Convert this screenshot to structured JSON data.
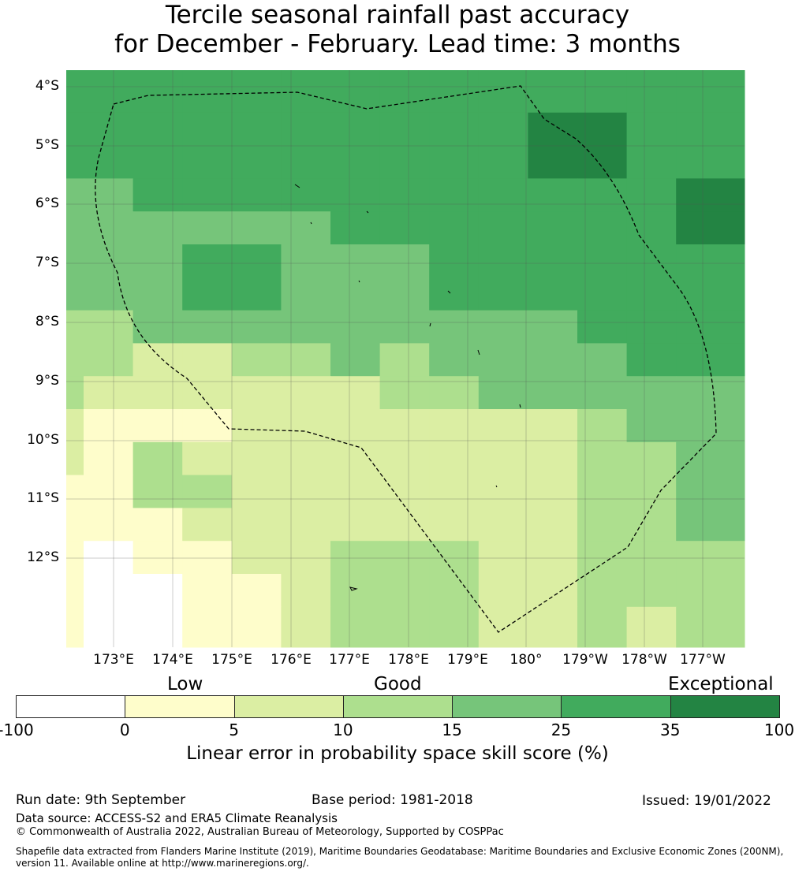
{
  "title_line1": "Tercile seasonal rainfall past accuracy",
  "title_line2": "for December - February. Lead time: 3 months",
  "lat_labels": [
    "4°S",
    "5°S",
    "6°S",
    "7°S",
    "8°S",
    "9°S",
    "10°S",
    "11°S",
    "12°S"
  ],
  "lon_labels": [
    "173°E",
    "174°E",
    "175°E",
    "176°E",
    "177°E",
    "178°E",
    "179°E",
    "180°",
    "179°W",
    "178°W",
    "177°W"
  ],
  "colorbar": {
    "categories": [
      "Low",
      "Good",
      "Exceptional"
    ],
    "ticks": [
      "-100",
      "0",
      "5",
      "10",
      "15",
      "25",
      "35",
      "100"
    ],
    "colors": [
      "#ffffff",
      "#fefdcb",
      "#dbeea3",
      "#addf8e",
      "#76c57a",
      "#41ab5d",
      "#238443"
    ],
    "label": "Linear error in probability space skill score (%)"
  },
  "map": {
    "lon_range": [
      "172.2°E",
      "176.3°W"
    ],
    "lat_range": [
      "3.75°S",
      "13.25°S"
    ],
    "grid_columns": 14,
    "grid_rows": 18,
    "grid_category_levels": [
      "55555555555555",
      "55555555555555",
      "55555555556655",
      "55555555556655",
      "44555555555556",
      "44444455555556",
      "44455444555555",
      "44455444555555",
      "33444444444555",
      "33223343444455",
      "32222223344444",
      "21112222222344",
      "21322222222334",
      "11332222222334",
      "11122222222334",
      "10112233322333",
      "10011233322333",
      "10011233322323"
    ],
    "boundary_style": "dashed"
  },
  "footer": {
    "run_date": "Run date: 9th September",
    "base_period": "Base period: 1981-2018",
    "issued": "Issued: 19/01/2022",
    "data_source": "Data source: ACCESS-S2 and ERA5 Climate Reanalysis",
    "copyright": "© Commonwealth of Australia 2022, Australian Bureau of Meteorology, Supported by COSPPac",
    "shapefile": "Shapefile data extracted from Flanders Marine Institute (2019), Maritime Boundaries Geodatabase: Maritime Boundaries and Exclusive Economic Zones (200NM), version 11. Available online at http://www.marineregions.org/."
  }
}
